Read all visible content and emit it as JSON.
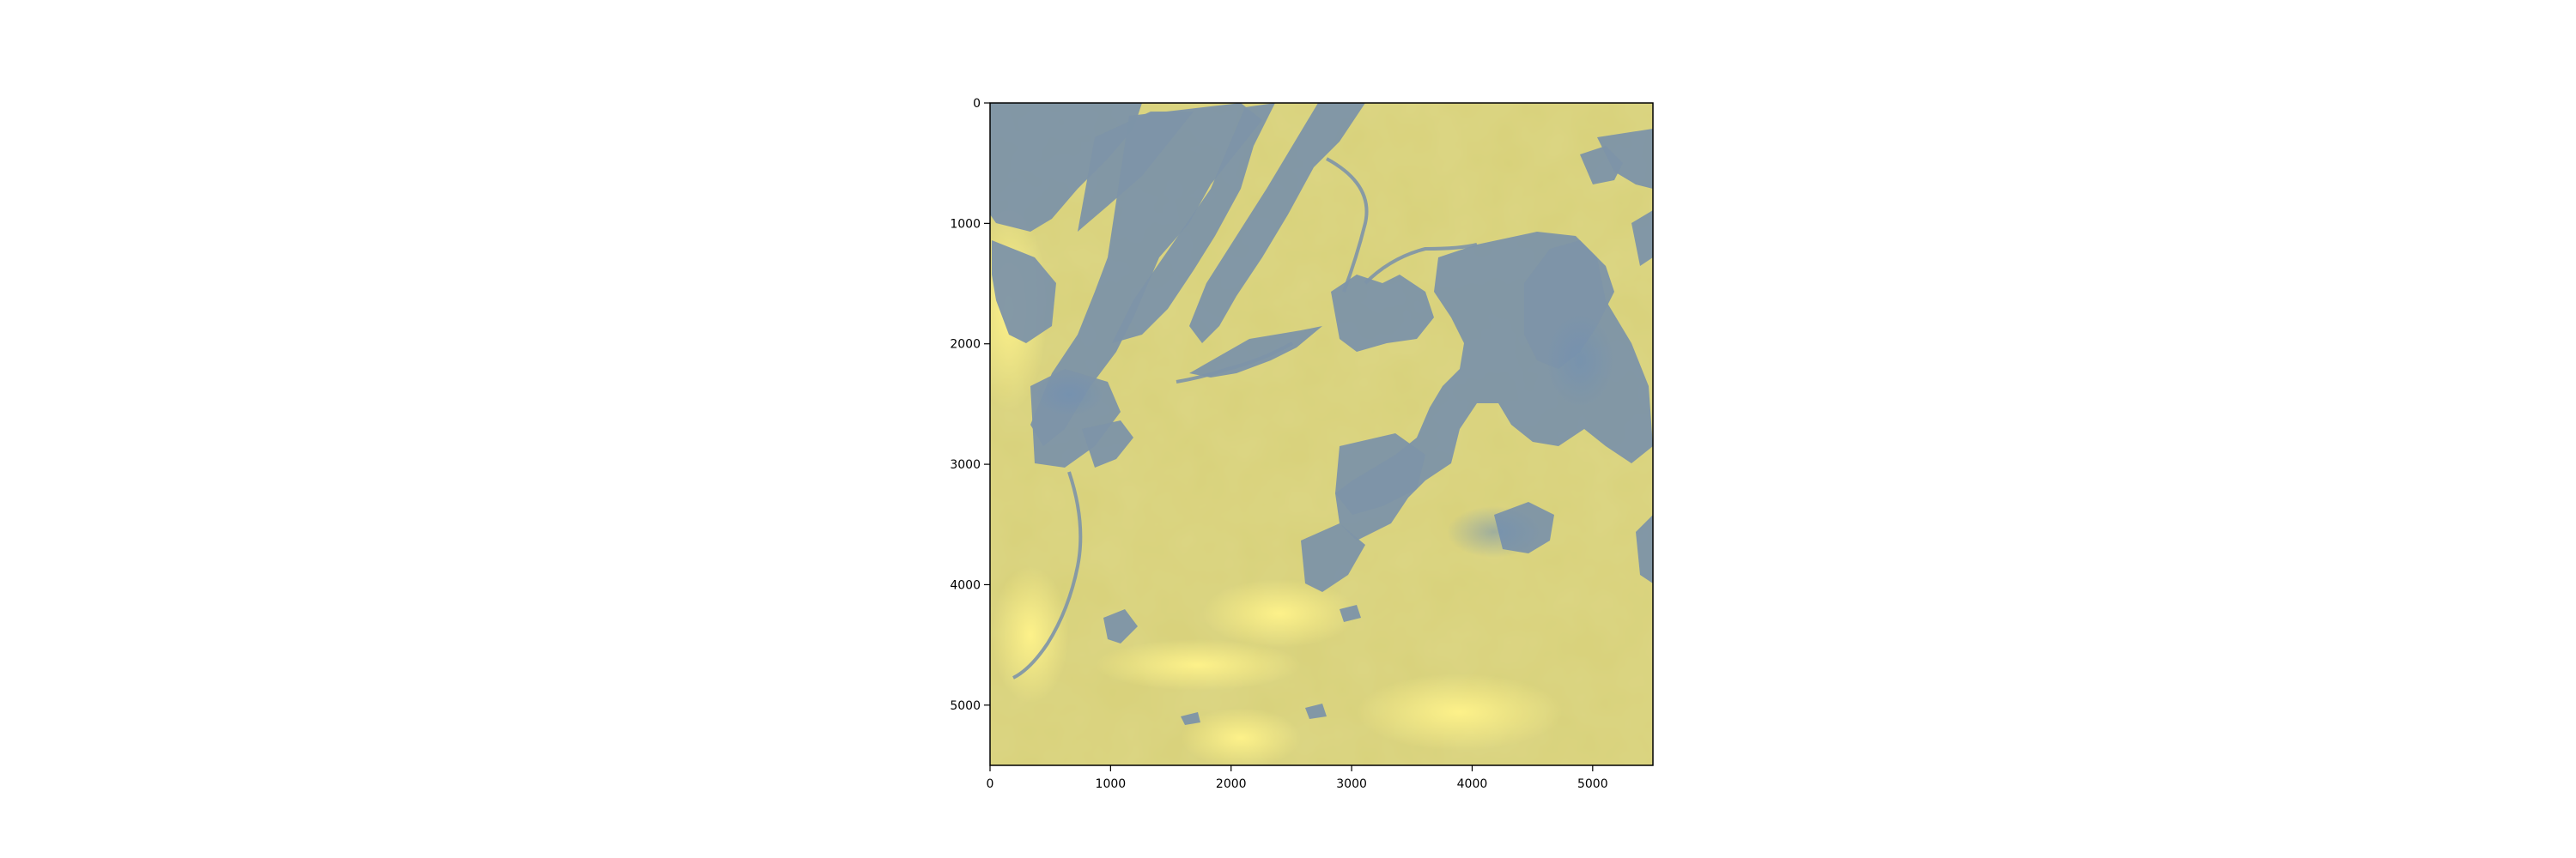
{
  "figure": {
    "background": "#ffffff",
    "image_description_colors": {
      "yellow": "#e6e07a",
      "blue": "#7d93a8"
    },
    "x_axis": {
      "ticks": [
        "0",
        "1000",
        "2000",
        "3000",
        "4000",
        "5000"
      ]
    },
    "y_axis": {
      "ticks": [
        "0",
        "1000",
        "2000",
        "3000",
        "4000",
        "5000"
      ]
    }
  }
}
